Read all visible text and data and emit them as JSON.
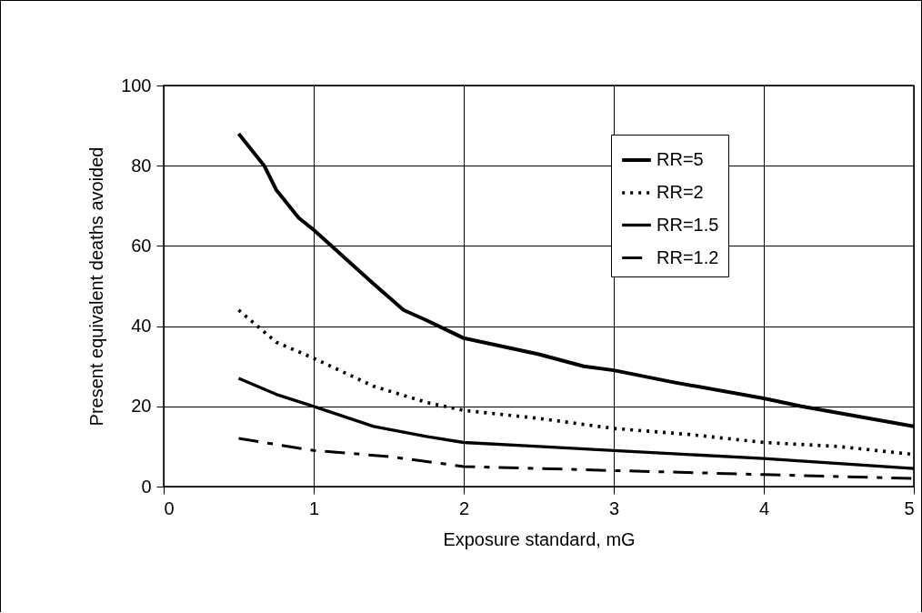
{
  "chart_data": {
    "type": "line",
    "xlabel": "Exposure standard, mG",
    "ylabel": "Present equivalent deaths avoided",
    "xlim": [
      0,
      5
    ],
    "xticks": [
      0,
      1,
      2,
      3,
      4,
      5
    ],
    "ylim": [
      0,
      100
    ],
    "yticks": [
      0,
      20,
      40,
      60,
      80,
      100
    ],
    "grid": true,
    "legend": "top right",
    "series": [
      {
        "name": "RR=5",
        "color": "#000000",
        "line_style": "solid",
        "x": [
          0.5,
          0.67,
          0.75,
          0.9,
          1,
          1.4,
          1.6,
          1.75,
          2,
          2.5,
          2.8,
          3,
          3.4,
          4,
          4.25,
          5
        ],
        "values": [
          88,
          80,
          74,
          67,
          64,
          50.5,
          44,
          41.5,
          37,
          33,
          30,
          29,
          26,
          22,
          20,
          15
        ]
      },
      {
        "name": "RR=2",
        "color": "#000000",
        "line_style": "dotted",
        "x": [
          0.5,
          0.75,
          1,
          1.4,
          1.75,
          2,
          2.5,
          3,
          3.5,
          4,
          4.5,
          5
        ],
        "values": [
          44,
          36,
          32,
          25,
          21,
          19,
          17,
          14.5,
          13,
          11,
          10,
          8
        ]
      },
      {
        "name": "RR=1.5",
        "color": "#000000",
        "line_style": "solid",
        "x": [
          0.5,
          0.75,
          1,
          1.4,
          1.75,
          2,
          2.5,
          3,
          4,
          5
        ],
        "values": [
          27,
          23,
          20,
          15,
          12.5,
          11,
          10,
          9,
          7,
          4.5
        ]
      },
      {
        "name": "RR=1.2",
        "color": "#000000",
        "line_style": "dashed",
        "x": [
          0.5,
          1,
          1.5,
          2,
          2.5,
          3,
          4,
          5
        ],
        "values": [
          12,
          9,
          7.5,
          5,
          4.5,
          4,
          3,
          2
        ]
      }
    ]
  }
}
